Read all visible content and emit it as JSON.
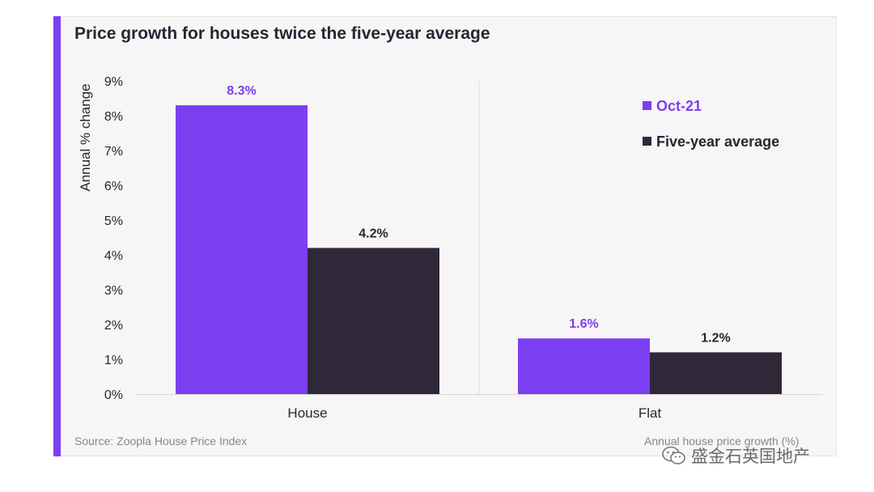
{
  "colors": {
    "accent": "#7b3ff2",
    "oct21": "#7b3ff2",
    "five_year": "#2f2838"
  },
  "chart_data": {
    "type": "bar",
    "title": "Price growth for houses twice the five-year average",
    "ylabel": "Annual % change",
    "xlabel": "",
    "ylim": [
      0,
      9
    ],
    "yticks": [
      "0%",
      "1%",
      "2%",
      "3%",
      "4%",
      "5%",
      "6%",
      "7%",
      "8%",
      "9%"
    ],
    "categories": [
      "House",
      "Flat"
    ],
    "series": [
      {
        "name": "Oct-21",
        "values": [
          8.3,
          1.6
        ],
        "labels": [
          "8.3%",
          "1.6%"
        ]
      },
      {
        "name": "Five-year average",
        "values": [
          4.2,
          1.2
        ],
        "labels": [
          "4.2%",
          "1.2%"
        ]
      }
    ],
    "legend_position": "top-right",
    "grid": false
  },
  "footer": {
    "source": "Source: Zoopla House Price Index",
    "note": "Annual house price growth (%)"
  },
  "watermark": {
    "text": "盛金石英国地产",
    "icon": "wechat-icon"
  }
}
